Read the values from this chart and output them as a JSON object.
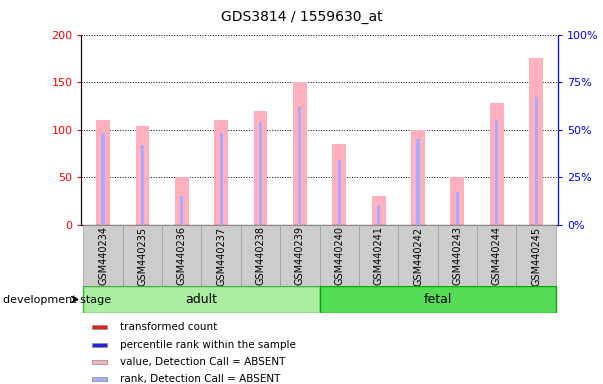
{
  "title": "GDS3814 / 1559630_at",
  "samples": [
    "GSM440234",
    "GSM440235",
    "GSM440236",
    "GSM440237",
    "GSM440238",
    "GSM440239",
    "GSM440240",
    "GSM440241",
    "GSM440242",
    "GSM440243",
    "GSM440244",
    "GSM440245"
  ],
  "transformed_count": [
    110,
    104,
    50,
    110,
    120,
    150,
    85,
    30,
    100,
    50,
    128,
    175
  ],
  "percentile_rank": [
    48,
    42,
    15,
    48,
    54,
    62,
    34,
    10,
    45,
    17,
    55,
    67
  ],
  "left_ylim": [
    0,
    200
  ],
  "right_ylim": [
    0,
    100
  ],
  "left_yticks": [
    0,
    50,
    100,
    150,
    200
  ],
  "right_yticks": [
    0,
    25,
    50,
    75,
    100
  ],
  "right_yticklabels": [
    "0%",
    "25%",
    "50%",
    "75%",
    "100%"
  ],
  "bar_color_absent": "#FFB0BC",
  "rank_color_absent": "#AAAAFF",
  "adult_color": "#AAEEA0",
  "fetal_color": "#55DD55",
  "adult_edge": "#44AA44",
  "fetal_edge": "#00AA00",
  "sample_box_color": "#CCCCCC",
  "sample_box_edge": "#999999",
  "legend_items": [
    {
      "label": "transformed count",
      "color": "#DD2222"
    },
    {
      "label": "percentile rank within the sample",
      "color": "#2222DD"
    },
    {
      "label": "value, Detection Call = ABSENT",
      "color": "#FFB0BC"
    },
    {
      "label": "rank, Detection Call = ABSENT",
      "color": "#AAAAFF"
    }
  ],
  "pink_bar_width": 0.35,
  "blue_bar_width": 0.08,
  "title_fontsize": 10,
  "tick_fontsize": 8,
  "label_fontsize": 7,
  "group_fontsize": 9,
  "devstage_fontsize": 8,
  "legend_fontsize": 7.5
}
